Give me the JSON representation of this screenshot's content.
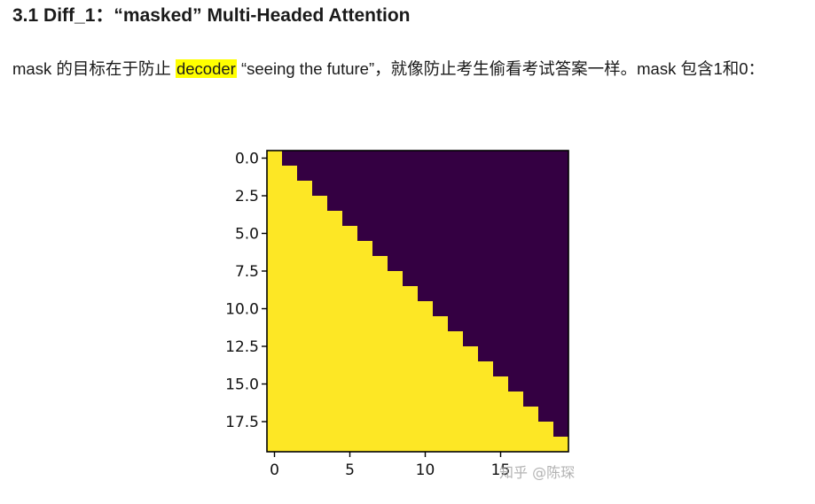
{
  "heading": {
    "number": "3.1",
    "title": "Diff_1：“masked” Multi-Headed Attention"
  },
  "paragraph": {
    "before_highlight": "mask 的目标在于防止 ",
    "highlight": "decoder",
    "after_highlight": " “seeing the future”，就像防止考生偷看考试答案一样。mask 包含1和0："
  },
  "chart_data": {
    "type": "heatmap",
    "description_values": "lower-triangular mask, 1 = visible (yellow), 0 = masked (dark purple)",
    "size": 20,
    "values": "tril(ones(20,20))",
    "colors": {
      "one": "#fde725",
      "zero": "#340042"
    },
    "xticks": [
      "0",
      "5",
      "10",
      "15"
    ],
    "xtick_values": [
      0,
      5,
      10,
      15
    ],
    "yticks": [
      "0.0",
      "2.5",
      "5.0",
      "7.5",
      "10.0",
      "12.5",
      "15.0",
      "17.5"
    ],
    "ytick_values": [
      0,
      2.5,
      5,
      7.5,
      10,
      12.5,
      15,
      17.5
    ],
    "xlim": [
      -0.5,
      19.5
    ],
    "ylim": [
      19.5,
      -0.5
    ]
  },
  "watermark": "知乎 @陈琛"
}
